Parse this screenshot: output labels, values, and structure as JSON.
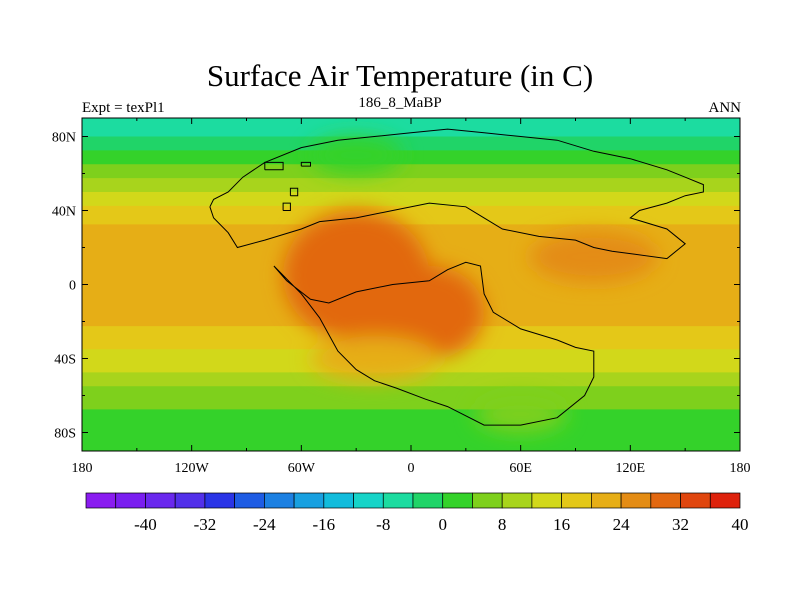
{
  "header": {
    "title": "Surface Air Temperature (in C)",
    "left": "Expt = texPl1",
    "center": "186_8_MaBP",
    "right": "ANN"
  },
  "chart_data": {
    "type": "heatmap",
    "title": "Surface Air Temperature (in C)",
    "xlim": [
      -180,
      180
    ],
    "ylim": [
      -90,
      90
    ],
    "x_ticks": [
      {
        "value": -180,
        "label": "180"
      },
      {
        "value": -120,
        "label": "120W"
      },
      {
        "value": -60,
        "label": "60W"
      },
      {
        "value": 0,
        "label": "0"
      },
      {
        "value": 60,
        "label": "60E"
      },
      {
        "value": 120,
        "label": "120E"
      },
      {
        "value": 180,
        "label": "180"
      }
    ],
    "y_ticks": [
      {
        "value": 80,
        "label": "80N"
      },
      {
        "value": 40,
        "label": "40N"
      },
      {
        "value": 0,
        "label": "0"
      },
      {
        "value": -40,
        "label": "40S"
      },
      {
        "value": -80,
        "label": "80S"
      }
    ],
    "colorbar": {
      "colors": [
        "#8a1cf0",
        "#7a1ef0",
        "#6a28ee",
        "#5230ea",
        "#2a34e6",
        "#1e5ce4",
        "#1c80e2",
        "#18a0e0",
        "#12bcdc",
        "#16d4c8",
        "#1cdca0",
        "#20d468",
        "#34d22a",
        "#7ed01c",
        "#a8d41c",
        "#d2d81a",
        "#e4c818",
        "#e6ae16",
        "#e48c14",
        "#e26810",
        "#e0460e",
        "#de220c"
      ],
      "tick_labels": [
        "-40",
        "-32",
        "-24",
        "-16",
        "-8",
        "0",
        "8",
        "16",
        "24",
        "32",
        "40"
      ],
      "range": [
        -48,
        48
      ]
    },
    "zonal_profile": [
      {
        "lat": 90,
        "temp": -2
      },
      {
        "lat": 80,
        "temp": 0
      },
      {
        "lat": 70,
        "temp": 6
      },
      {
        "lat": 60,
        "temp": 12
      },
      {
        "lat": 50,
        "temp": 18
      },
      {
        "lat": 40,
        "temp": 24
      },
      {
        "lat": 30,
        "temp": 27
      },
      {
        "lat": 20,
        "temp": 29
      },
      {
        "lat": 10,
        "temp": 30
      },
      {
        "lat": 0,
        "temp": 30
      },
      {
        "lat": -10,
        "temp": 29
      },
      {
        "lat": -20,
        "temp": 27
      },
      {
        "lat": -30,
        "temp": 24
      },
      {
        "lat": -40,
        "temp": 20
      },
      {
        "lat": -50,
        "temp": 16
      },
      {
        "lat": -60,
        "temp": 11
      },
      {
        "lat": -70,
        "temp": 8
      },
      {
        "lat": -80,
        "temp": 6
      },
      {
        "lat": -90,
        "temp": 5
      }
    ],
    "warm_regions": [
      {
        "lon": -30,
        "lat": 5,
        "rlon": 40,
        "rlat": 35,
        "temp": 38
      },
      {
        "lon": -45,
        "lat": 20,
        "rlon": 20,
        "rlat": 12,
        "temp": 39
      },
      {
        "lon": 10,
        "lat": -15,
        "rlon": 30,
        "rlat": 25,
        "temp": 36
      },
      {
        "lon": 100,
        "lat": 15,
        "rlon": 35,
        "rlat": 14,
        "temp": 33
      },
      {
        "lon": -20,
        "lat": -40,
        "rlon": 35,
        "rlat": 12,
        "temp": 27
      }
    ],
    "cool_regions": [
      {
        "lon": 60,
        "lat": -70,
        "rlon": 25,
        "rlat": 10,
        "temp": 10
      },
      {
        "lon": -30,
        "lat": 70,
        "rlon": 25,
        "rlat": 10,
        "temp": 8
      }
    ],
    "continent_outlines": [
      [
        [
          -110,
          42
        ],
        [
          -108,
          46
        ],
        [
          -100,
          50
        ],
        [
          -92,
          58
        ],
        [
          -80,
          66
        ],
        [
          -60,
          74
        ],
        [
          -40,
          78
        ],
        [
          -20,
          80
        ],
        [
          0,
          82
        ],
        [
          20,
          84
        ],
        [
          40,
          82
        ],
        [
          60,
          80
        ],
        [
          80,
          78
        ],
        [
          100,
          72
        ],
        [
          120,
          68
        ],
        [
          140,
          62
        ],
        [
          150,
          58
        ],
        [
          160,
          54
        ],
        [
          160,
          50
        ],
        [
          150,
          48
        ],
        [
          140,
          44
        ],
        [
          125,
          40
        ],
        [
          120,
          36
        ],
        [
          140,
          30
        ],
        [
          150,
          22
        ],
        [
          140,
          14
        ],
        [
          110,
          18
        ],
        [
          100,
          20
        ],
        [
          90,
          24
        ],
        [
          70,
          26
        ],
        [
          50,
          30
        ],
        [
          40,
          36
        ],
        [
          30,
          42
        ],
        [
          10,
          44
        ],
        [
          -10,
          40
        ],
        [
          -30,
          36
        ],
        [
          -50,
          34
        ],
        [
          -60,
          30
        ],
        [
          -80,
          24
        ],
        [
          -95,
          20
        ],
        [
          -100,
          28
        ],
        [
          -108,
          36
        ],
        [
          -110,
          42
        ]
      ],
      [
        [
          -75,
          10
        ],
        [
          -60,
          -5
        ],
        [
          -50,
          -18
        ],
        [
          -40,
          -36
        ],
        [
          -30,
          -46
        ],
        [
          -20,
          -52
        ],
        [
          -8,
          -56
        ],
        [
          8,
          -62
        ],
        [
          20,
          -66
        ],
        [
          40,
          -76
        ],
        [
          60,
          -76
        ],
        [
          80,
          -72
        ],
        [
          95,
          -60
        ],
        [
          100,
          -50
        ],
        [
          100,
          -36
        ],
        [
          90,
          -34
        ],
        [
          80,
          -30
        ],
        [
          60,
          -24
        ],
        [
          45,
          -15
        ],
        [
          40,
          -5
        ],
        [
          38,
          10
        ],
        [
          30,
          12
        ],
        [
          20,
          8
        ],
        [
          10,
          2
        ],
        [
          -10,
          0
        ],
        [
          -30,
          -4
        ],
        [
          -45,
          -10
        ],
        [
          -55,
          -8
        ],
        [
          -68,
          2
        ],
        [
          -75,
          10
        ]
      ]
    ],
    "islands": [
      [
        [
          -80,
          62
        ],
        [
          -70,
          62
        ],
        [
          -70,
          66
        ],
        [
          -80,
          66
        ],
        [
          -80,
          62
        ]
      ],
      [
        [
          -60,
          64
        ],
        [
          -55,
          64
        ],
        [
          -55,
          66
        ],
        [
          -60,
          66
        ],
        [
          -60,
          64
        ]
      ],
      [
        [
          -66,
          48
        ],
        [
          -62,
          48
        ],
        [
          -62,
          52
        ],
        [
          -66,
          52
        ],
        [
          -66,
          48
        ]
      ],
      [
        [
          -70,
          40
        ],
        [
          -66,
          40
        ],
        [
          -66,
          44
        ],
        [
          -70,
          44
        ],
        [
          -70,
          40
        ]
      ]
    ]
  }
}
